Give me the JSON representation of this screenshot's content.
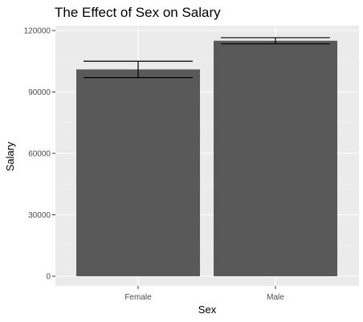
{
  "chart_data": {
    "type": "bar",
    "title": "The Effect of Sex on Salary",
    "xlabel": "Sex",
    "ylabel": "Salary",
    "categories": [
      "Female",
      "Male"
    ],
    "values": [
      101000,
      115000
    ],
    "error_bars": [
      {
        "low": 97000,
        "high": 105000
      },
      {
        "low": 113500,
        "high": 116500
      }
    ],
    "ylim": [
      0,
      120000
    ],
    "yticks": [
      0,
      30000,
      60000,
      90000,
      120000
    ],
    "ytick_labels": [
      "0",
      "30000",
      "60000",
      "90000",
      "120000"
    ],
    "grid": true,
    "legend": "none",
    "colors": {
      "bar": "#595959",
      "panel_background": "#ebebeb",
      "grid_major": "#ffffff",
      "error_bar": "#000000"
    }
  }
}
